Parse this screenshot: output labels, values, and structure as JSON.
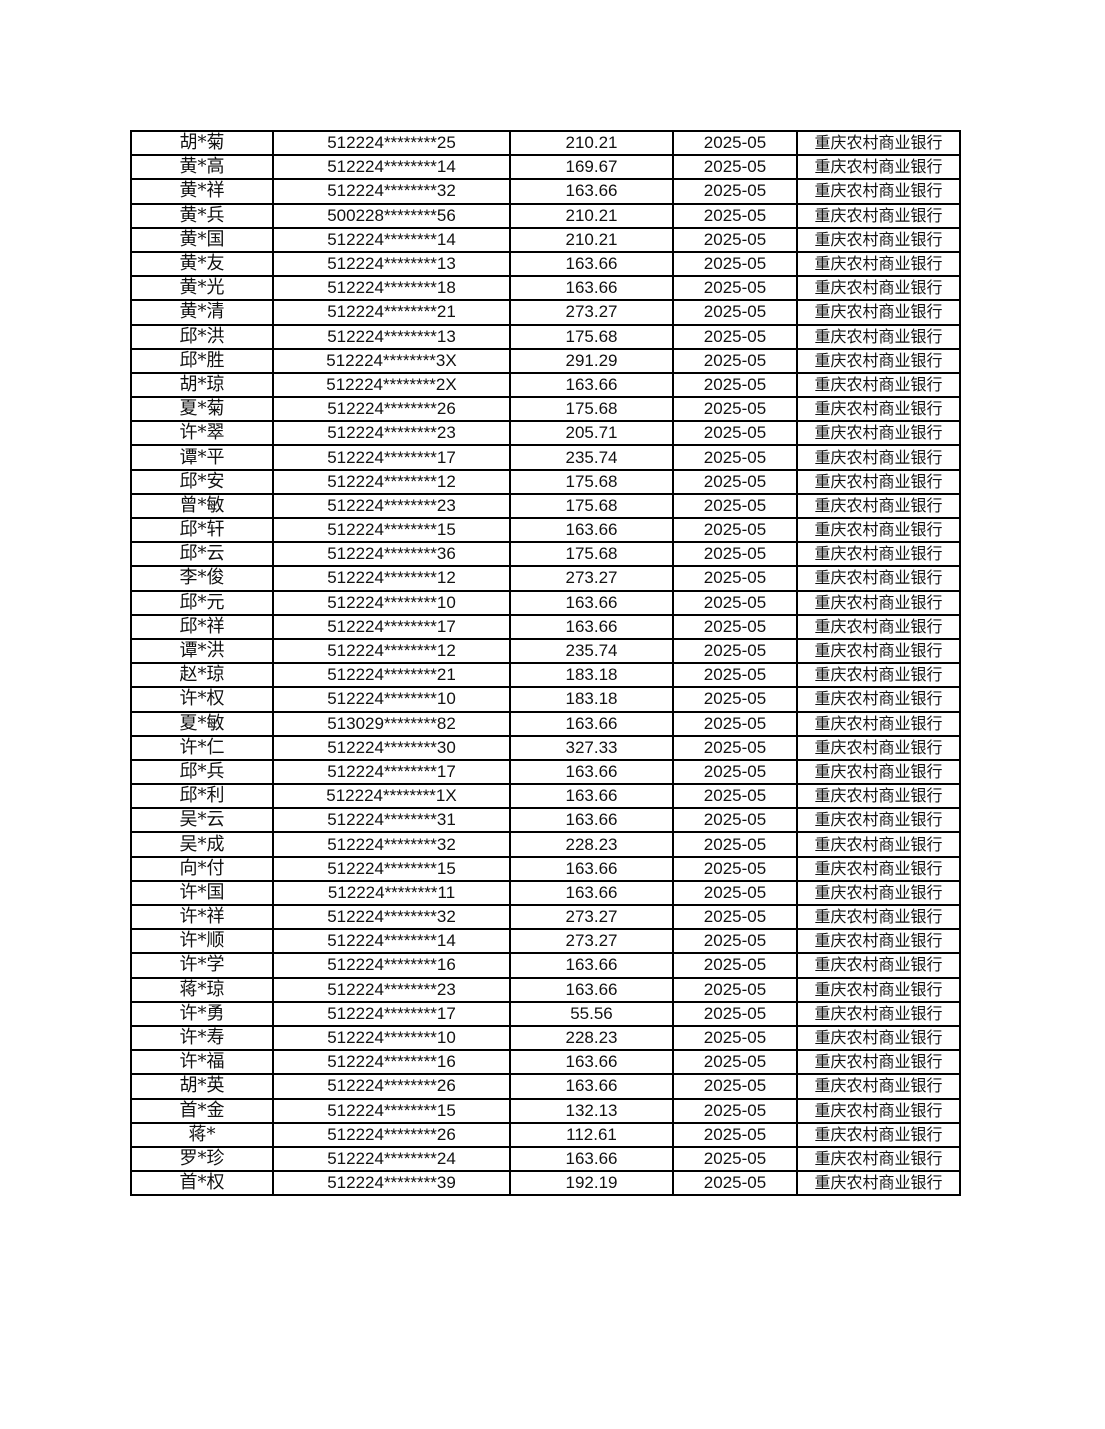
{
  "table": {
    "rows": [
      [
        "胡*菊",
        "512224********25",
        "210.21",
        "2025-05",
        "重庆农村商业银行"
      ],
      [
        "黄*高",
        "512224********14",
        "169.67",
        "2025-05",
        "重庆农村商业银行"
      ],
      [
        "黄*祥",
        "512224********32",
        "163.66",
        "2025-05",
        "重庆农村商业银行"
      ],
      [
        "黄*兵",
        "500228********56",
        "210.21",
        "2025-05",
        "重庆农村商业银行"
      ],
      [
        "黄*国",
        "512224********14",
        "210.21",
        "2025-05",
        "重庆农村商业银行"
      ],
      [
        "黄*友",
        "512224********13",
        "163.66",
        "2025-05",
        "重庆农村商业银行"
      ],
      [
        "黄*光",
        "512224********18",
        "163.66",
        "2025-05",
        "重庆农村商业银行"
      ],
      [
        "黄*清",
        "512224********21",
        "273.27",
        "2025-05",
        "重庆农村商业银行"
      ],
      [
        "邱*洪",
        "512224********13",
        "175.68",
        "2025-05",
        "重庆农村商业银行"
      ],
      [
        "邱*胜",
        "512224********3X",
        "291.29",
        "2025-05",
        "重庆农村商业银行"
      ],
      [
        "胡*琼",
        "512224********2X",
        "163.66",
        "2025-05",
        "重庆农村商业银行"
      ],
      [
        "夏*菊",
        "512224********26",
        "175.68",
        "2025-05",
        "重庆农村商业银行"
      ],
      [
        "许*翠",
        "512224********23",
        "205.71",
        "2025-05",
        "重庆农村商业银行"
      ],
      [
        "谭*平",
        "512224********17",
        "235.74",
        "2025-05",
        "重庆农村商业银行"
      ],
      [
        "邱*安",
        "512224********12",
        "175.68",
        "2025-05",
        "重庆农村商业银行"
      ],
      [
        "曾*敏",
        "512224********23",
        "175.68",
        "2025-05",
        "重庆农村商业银行"
      ],
      [
        "邱*轩",
        "512224********15",
        "163.66",
        "2025-05",
        "重庆农村商业银行"
      ],
      [
        "邱*云",
        "512224********36",
        "175.68",
        "2025-05",
        "重庆农村商业银行"
      ],
      [
        "李*俊",
        "512224********12",
        "273.27",
        "2025-05",
        "重庆农村商业银行"
      ],
      [
        "邱*元",
        "512224********10",
        "163.66",
        "2025-05",
        "重庆农村商业银行"
      ],
      [
        "邱*祥",
        "512224********17",
        "163.66",
        "2025-05",
        "重庆农村商业银行"
      ],
      [
        "谭*洪",
        "512224********12",
        "235.74",
        "2025-05",
        "重庆农村商业银行"
      ],
      [
        "赵*琼",
        "512224********21",
        "183.18",
        "2025-05",
        "重庆农村商业银行"
      ],
      [
        "许*权",
        "512224********10",
        "183.18",
        "2025-05",
        "重庆农村商业银行"
      ],
      [
        "夏*敏",
        "513029********82",
        "163.66",
        "2025-05",
        "重庆农村商业银行"
      ],
      [
        "许*仁",
        "512224********30",
        "327.33",
        "2025-05",
        "重庆农村商业银行"
      ],
      [
        "邱*兵",
        "512224********17",
        "163.66",
        "2025-05",
        "重庆农村商业银行"
      ],
      [
        "邱*利",
        "512224********1X",
        "163.66",
        "2025-05",
        "重庆农村商业银行"
      ],
      [
        "吴*云",
        "512224********31",
        "163.66",
        "2025-05",
        "重庆农村商业银行"
      ],
      [
        "吴*成",
        "512224********32",
        "228.23",
        "2025-05",
        "重庆农村商业银行"
      ],
      [
        "向*付",
        "512224********15",
        "163.66",
        "2025-05",
        "重庆农村商业银行"
      ],
      [
        "许*国",
        "512224********11",
        "163.66",
        "2025-05",
        "重庆农村商业银行"
      ],
      [
        "许*祥",
        "512224********32",
        "273.27",
        "2025-05",
        "重庆农村商业银行"
      ],
      [
        "许*顺",
        "512224********14",
        "273.27",
        "2025-05",
        "重庆农村商业银行"
      ],
      [
        "许*学",
        "512224********16",
        "163.66",
        "2025-05",
        "重庆农村商业银行"
      ],
      [
        "蒋*琼",
        "512224********23",
        "163.66",
        "2025-05",
        "重庆农村商业银行"
      ],
      [
        "许*勇",
        "512224********17",
        "55.56",
        "2025-05",
        "重庆农村商业银行"
      ],
      [
        "许*寿",
        "512224********10",
        "228.23",
        "2025-05",
        "重庆农村商业银行"
      ],
      [
        "许*福",
        "512224********16",
        "163.66",
        "2025-05",
        "重庆农村商业银行"
      ],
      [
        "胡*英",
        "512224********26",
        "163.66",
        "2025-05",
        "重庆农村商业银行"
      ],
      [
        "首*金",
        "512224********15",
        "132.13",
        "2025-05",
        "重庆农村商业银行"
      ],
      [
        "蒋*",
        "512224********26",
        "112.61",
        "2025-05",
        "重庆农村商业银行"
      ],
      [
        "罗*珍",
        "512224********24",
        "163.66",
        "2025-05",
        "重庆农村商业银行"
      ],
      [
        "首*权",
        "512224********39",
        "192.19",
        "2025-05",
        "重庆农村商业银行"
      ]
    ]
  }
}
